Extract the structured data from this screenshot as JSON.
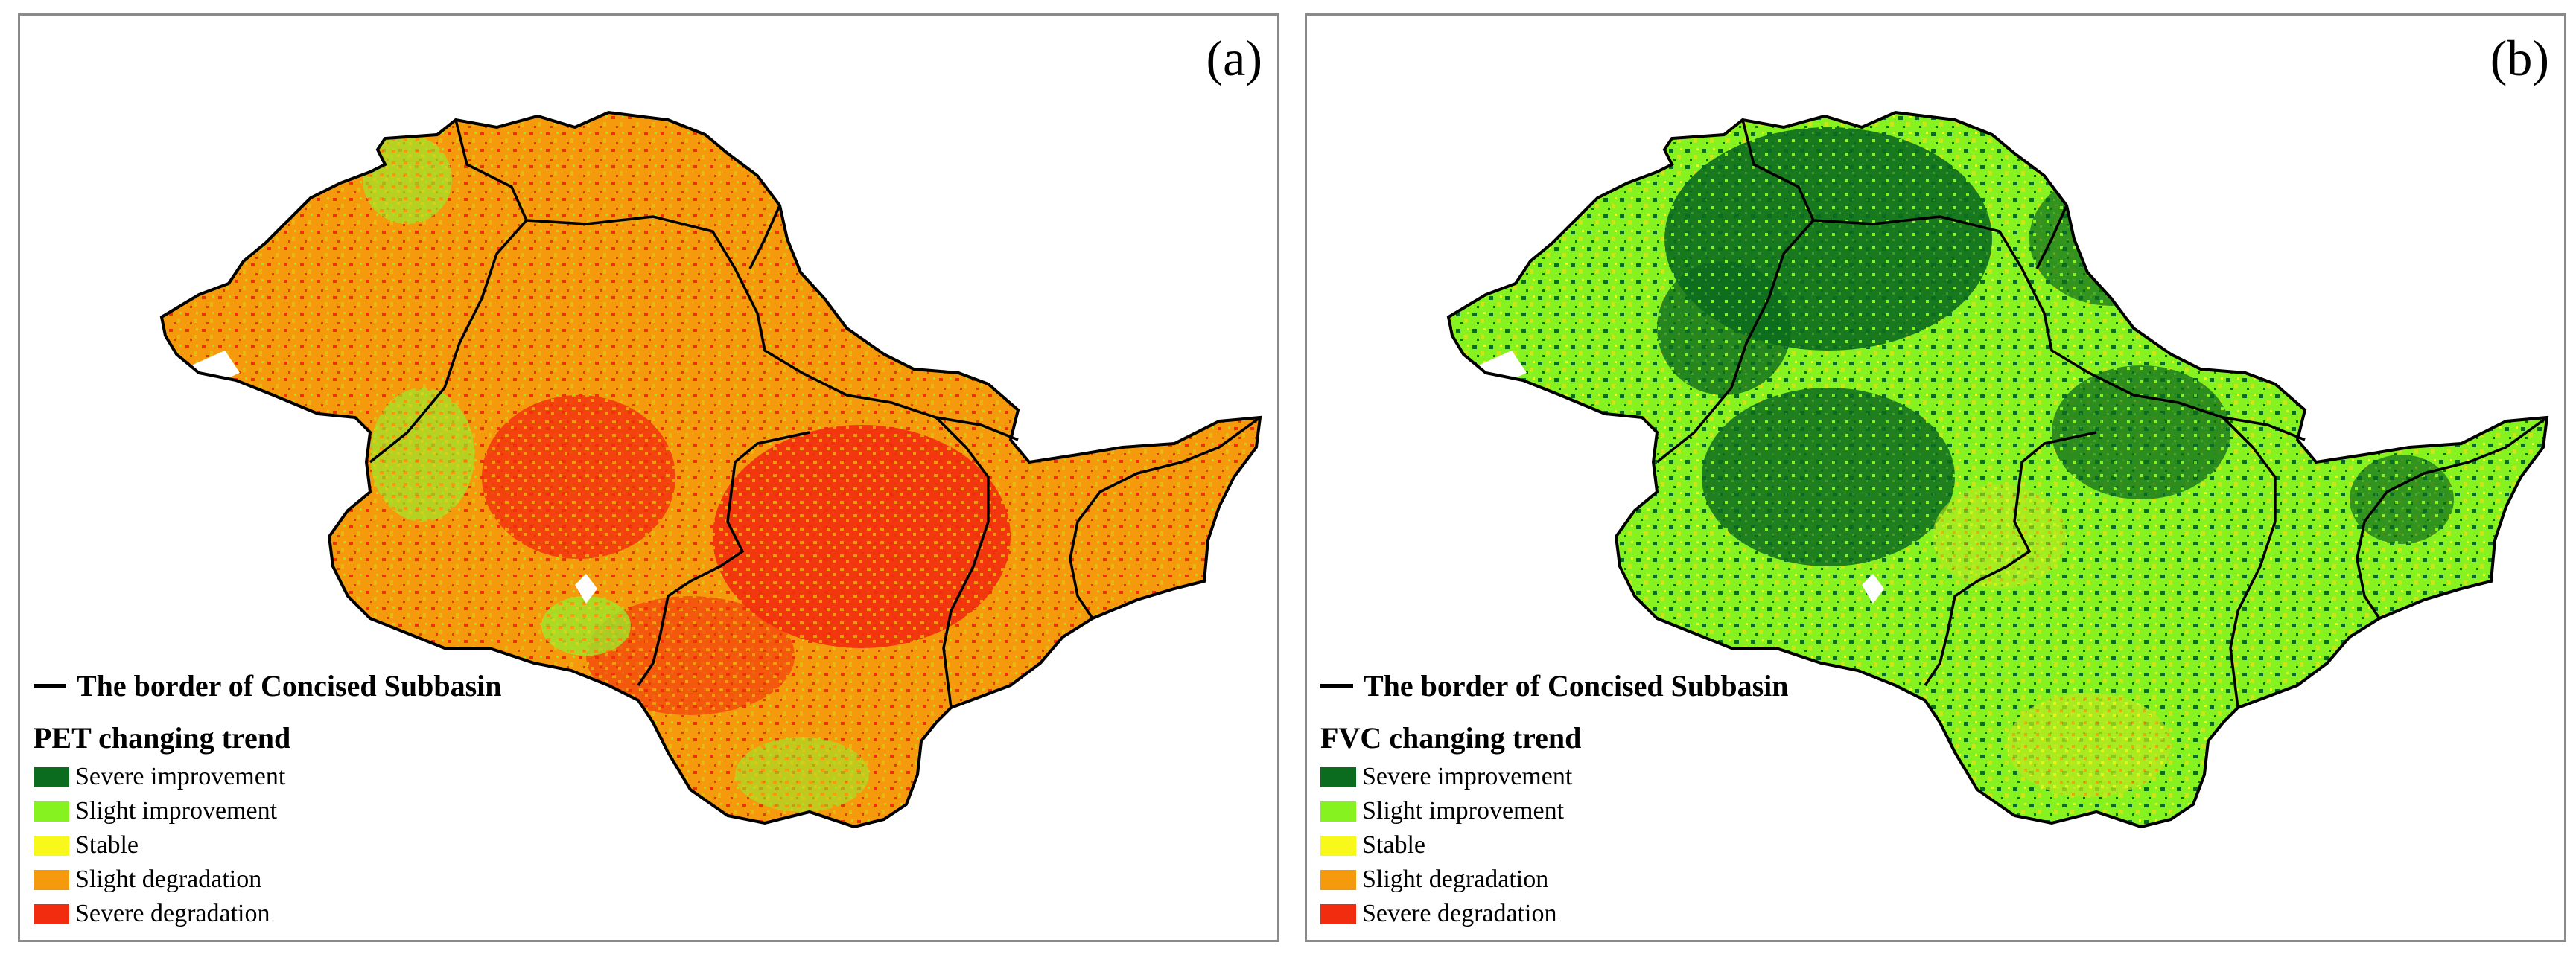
{
  "colors": {
    "severe_improvement": "#0b6b1e",
    "slight_improvement": "#86f21f",
    "stable": "#f8f81a",
    "slight_degradation": "#f59a0c",
    "severe_degradation": "#f22c0e",
    "border": "#000000"
  },
  "legend_items": [
    {
      "label": "Severe improvement",
      "color": "#0b6b1e"
    },
    {
      "label": "Slight improvement",
      "color": "#86f21f"
    },
    {
      "label": "Stable",
      "color": "#f8f81a"
    },
    {
      "label": "Slight degradation",
      "color": "#f59a0c"
    },
    {
      "label": "Severe degradation",
      "color": "#f22c0e"
    }
  ],
  "panels": [
    {
      "label": "(a)",
      "border_label": "The border of Concised Subbasin",
      "legend_title": "PET changing trend",
      "map_icon": "basin-map-icon"
    },
    {
      "label": "(b)",
      "border_label": "The border of Concised Subbasin",
      "legend_title": "FVC changing trend",
      "map_icon": "basin-map-icon"
    }
  ]
}
